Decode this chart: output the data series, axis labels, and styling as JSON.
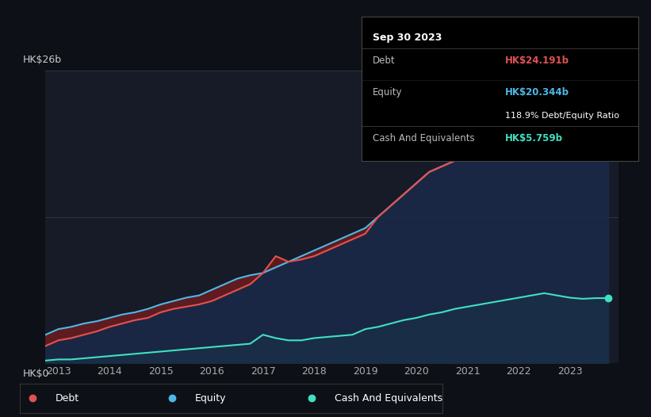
{
  "background_color": "#0d1117",
  "plot_bg_color": "#161b27",
  "ylabel_top": "HK$26b",
  "ylabel_bottom": "HK$0",
  "tooltip": {
    "date": "Sep 30 2023",
    "debt_label": "Debt",
    "debt_value": "HK$24.191b",
    "equity_label": "Equity",
    "equity_value": "HK$20.344b",
    "ratio": "118.9% Debt/Equity Ratio",
    "cash_label": "Cash And Equivalents",
    "cash_value": "HK$5.759b"
  },
  "years": [
    2012.75,
    2013.0,
    2013.25,
    2013.5,
    2013.75,
    2014.0,
    2014.25,
    2014.5,
    2014.75,
    2015.0,
    2015.25,
    2015.5,
    2015.75,
    2016.0,
    2016.25,
    2016.5,
    2016.75,
    2017.0,
    2017.25,
    2017.5,
    2017.75,
    2018.0,
    2018.25,
    2018.5,
    2018.75,
    2019.0,
    2019.25,
    2019.5,
    2019.75,
    2020.0,
    2020.25,
    2020.5,
    2020.75,
    2021.0,
    2021.25,
    2021.5,
    2021.75,
    2022.0,
    2022.25,
    2022.5,
    2022.75,
    2023.0,
    2023.25,
    2023.5,
    2023.75
  ],
  "debt": [
    1.5,
    2.0,
    2.2,
    2.5,
    2.8,
    3.2,
    3.5,
    3.8,
    4.0,
    4.5,
    4.8,
    5.0,
    5.2,
    5.5,
    6.0,
    6.5,
    7.0,
    8.0,
    9.5,
    9.0,
    9.2,
    9.5,
    10.0,
    10.5,
    11.0,
    11.5,
    13.0,
    14.0,
    15.0,
    16.0,
    17.0,
    17.5,
    18.0,
    18.5,
    19.5,
    20.5,
    21.5,
    22.0,
    23.0,
    24.0,
    24.5,
    24.5,
    24.0,
    24.191,
    24.191
  ],
  "equity": [
    2.5,
    3.0,
    3.2,
    3.5,
    3.7,
    4.0,
    4.3,
    4.5,
    4.8,
    5.2,
    5.5,
    5.8,
    6.0,
    6.5,
    7.0,
    7.5,
    7.8,
    8.0,
    8.5,
    9.0,
    9.5,
    10.0,
    10.5,
    11.0,
    11.5,
    12.0,
    13.0,
    14.0,
    15.0,
    16.0,
    17.0,
    17.5,
    18.0,
    18.5,
    19.0,
    19.5,
    20.0,
    20.5,
    21.0,
    21.0,
    20.5,
    20.5,
    20.3,
    20.344,
    20.344
  ],
  "cash": [
    0.2,
    0.3,
    0.3,
    0.4,
    0.5,
    0.6,
    0.7,
    0.8,
    0.9,
    1.0,
    1.1,
    1.2,
    1.3,
    1.4,
    1.5,
    1.6,
    1.7,
    2.5,
    2.2,
    2.0,
    2.0,
    2.2,
    2.3,
    2.4,
    2.5,
    3.0,
    3.2,
    3.5,
    3.8,
    4.0,
    4.3,
    4.5,
    4.8,
    5.0,
    5.2,
    5.4,
    5.6,
    5.8,
    6.0,
    6.2,
    6.0,
    5.8,
    5.7,
    5.759,
    5.759
  ],
  "debt_color": "#e05252",
  "equity_color": "#4db8e8",
  "cash_color": "#40e0c0",
  "debt_fill": "#6b1a1a",
  "equity_fill": "#1a2a4a",
  "cash_fill": "#1a4a3a",
  "legend_items": [
    "Debt",
    "Equity",
    "Cash And Equivalents"
  ],
  "xticks": [
    2013,
    2014,
    2015,
    2016,
    2017,
    2018,
    2019,
    2020,
    2021,
    2022,
    2023
  ],
  "ylim": [
    0,
    26
  ],
  "figsize": [
    8.21,
    5.26
  ],
  "dpi": 100
}
